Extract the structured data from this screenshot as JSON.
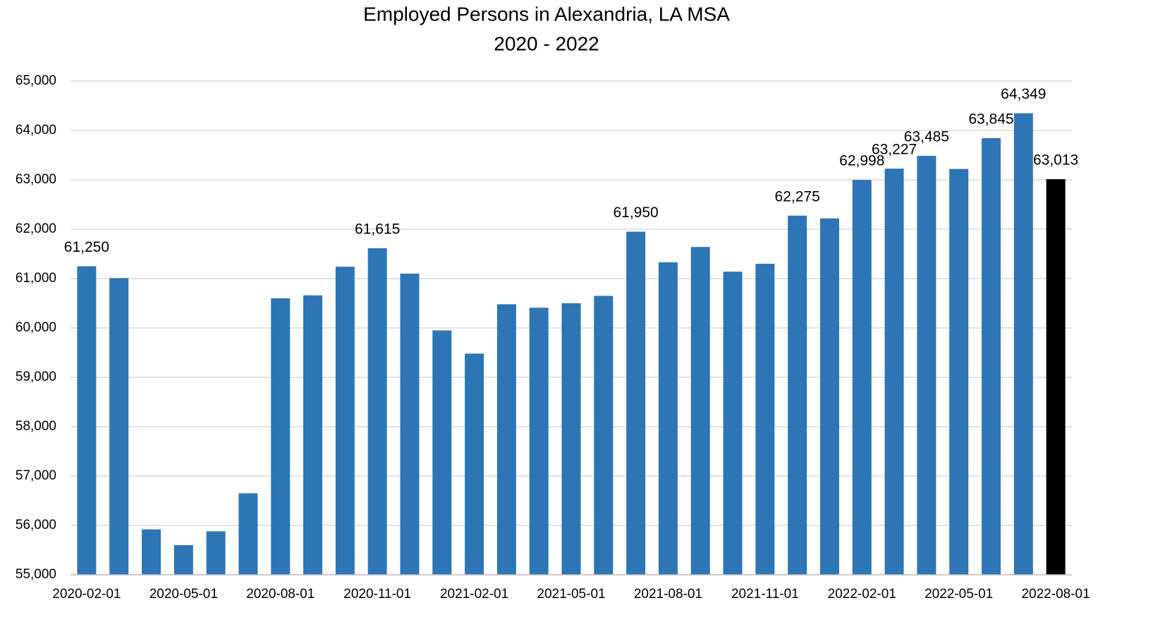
{
  "chart_data": {
    "type": "bar",
    "title": "Employed Persons in Alexandria, LA MSA",
    "subtitle": "2020 - 2022",
    "categories": [
      "2020-02-01",
      null,
      null,
      "2020-05-01",
      null,
      null,
      "2020-08-01",
      null,
      null,
      "2020-11-01",
      null,
      null,
      "2021-02-01",
      null,
      null,
      "2021-05-01",
      null,
      null,
      "2021-08-01",
      null,
      null,
      "2021-11-01",
      null,
      null,
      "2022-02-01",
      null,
      null,
      "2022-05-01",
      null,
      null,
      "2022-08-01"
    ],
    "values": [
      61250,
      61010,
      55920,
      55600,
      55880,
      56650,
      60600,
      60660,
      61240,
      61615,
      61100,
      59950,
      59480,
      60480,
      60410,
      60500,
      60650,
      61950,
      61330,
      61640,
      61140,
      61300,
      62275,
      62220,
      62998,
      63227,
      63485,
      63220,
      63845,
      64349,
      63013
    ],
    "value_labels": [
      "61,250",
      null,
      null,
      null,
      null,
      null,
      null,
      null,
      null,
      "61,615",
      null,
      null,
      null,
      null,
      null,
      null,
      null,
      "61,950",
      null,
      null,
      null,
      null,
      "62,275",
      null,
      "62,998",
      "63,227",
      "63,485",
      null,
      "63,845",
      "64,349",
      "63,013"
    ],
    "colors": [
      "#2e75b6",
      "#2e75b6",
      "#2e75b6",
      "#2e75b6",
      "#2e75b6",
      "#2e75b6",
      "#2e75b6",
      "#2e75b6",
      "#2e75b6",
      "#2e75b6",
      "#2e75b6",
      "#2e75b6",
      "#2e75b6",
      "#2e75b6",
      "#2e75b6",
      "#2e75b6",
      "#2e75b6",
      "#2e75b6",
      "#2e75b6",
      "#2e75b6",
      "#2e75b6",
      "#2e75b6",
      "#2e75b6",
      "#2e75b6",
      "#2e75b6",
      "#2e75b6",
      "#2e75b6",
      "#2e75b6",
      "#2e75b6",
      "#2e75b6",
      "#000000"
    ],
    "ylim": [
      55000,
      65000
    ],
    "yticks": [
      {
        "value": 55000,
        "label": "55,000"
      },
      {
        "value": 56000,
        "label": "56,000"
      },
      {
        "value": 57000,
        "label": "57,000"
      },
      {
        "value": 58000,
        "label": "58,000"
      },
      {
        "value": 59000,
        "label": "59,000"
      },
      {
        "value": 60000,
        "label": "60,000"
      },
      {
        "value": 61000,
        "label": "61,000"
      },
      {
        "value": 62000,
        "label": "62,000"
      },
      {
        "value": 63000,
        "label": "63,000"
      },
      {
        "value": 64000,
        "label": "64,000"
      },
      {
        "value": 65000,
        "label": "65,000"
      }
    ],
    "grid": true
  }
}
